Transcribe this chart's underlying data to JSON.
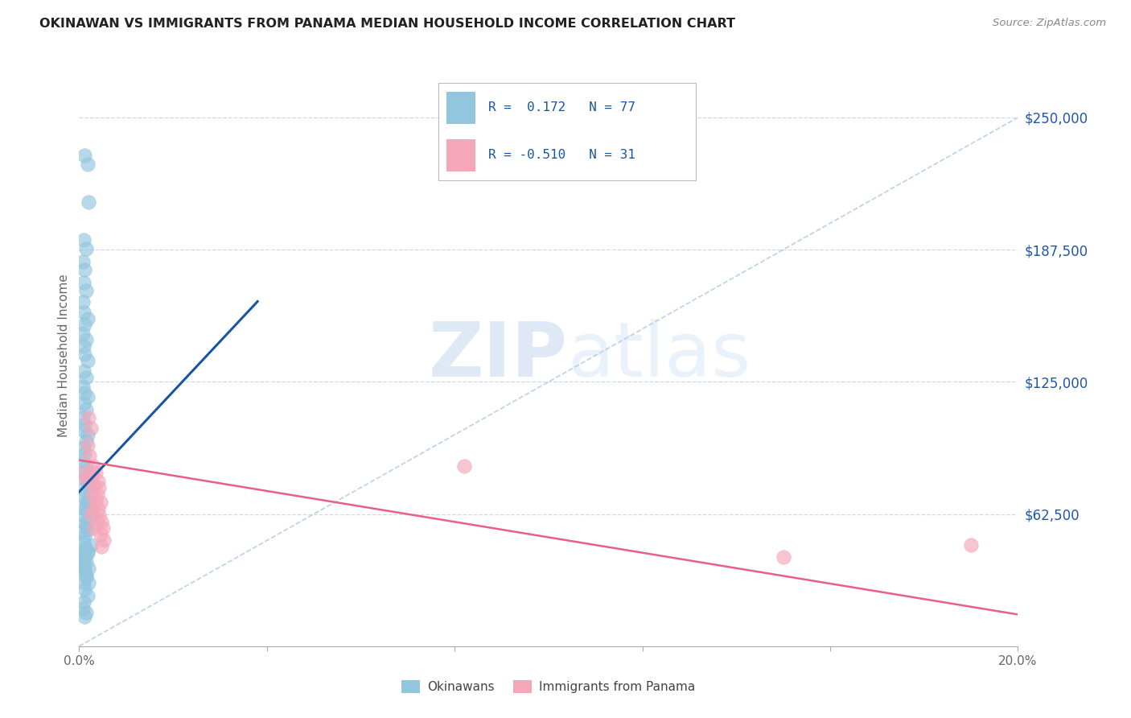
{
  "title": "OKINAWAN VS IMMIGRANTS FROM PANAMA MEDIAN HOUSEHOLD INCOME CORRELATION CHART",
  "source": "Source: ZipAtlas.com",
  "ylabel": "Median Household Income",
  "ytick_values": [
    62500,
    125000,
    187500,
    250000
  ],
  "ymin": 0,
  "ymax": 275000,
  "xmin": 0.0,
  "xmax": 0.2,
  "watermark_zip": "ZIP",
  "watermark_atlas": "atlas",
  "blue_color": "#92c5de",
  "pink_color": "#f4a7b9",
  "blue_line_color": "#1a56a0",
  "pink_line_color": "#e8608a",
  "dashed_color": "#b0c8e8",
  "grid_color": "#d0d8e0",
  "okinawan_points": [
    [
      0.0012,
      232000
    ],
    [
      0.0018,
      228000
    ],
    [
      0.002,
      210000
    ],
    [
      0.001,
      192000
    ],
    [
      0.0015,
      188000
    ],
    [
      0.0008,
      182000
    ],
    [
      0.0012,
      178000
    ],
    [
      0.001,
      172000
    ],
    [
      0.0015,
      168000
    ],
    [
      0.0008,
      163000
    ],
    [
      0.001,
      158000
    ],
    [
      0.0018,
      155000
    ],
    [
      0.0012,
      152000
    ],
    [
      0.0008,
      148000
    ],
    [
      0.0015,
      145000
    ],
    [
      0.001,
      142000
    ],
    [
      0.0012,
      138000
    ],
    [
      0.0018,
      135000
    ],
    [
      0.001,
      130000
    ],
    [
      0.0015,
      127000
    ],
    [
      0.0008,
      123000
    ],
    [
      0.0012,
      120000
    ],
    [
      0.0018,
      118000
    ],
    [
      0.001,
      115000
    ],
    [
      0.0015,
      112000
    ],
    [
      0.0008,
      108000
    ],
    [
      0.0012,
      105000
    ],
    [
      0.001,
      102000
    ],
    [
      0.0018,
      100000
    ],
    [
      0.0015,
      97000
    ],
    [
      0.001,
      94000
    ],
    [
      0.0012,
      91000
    ],
    [
      0.0008,
      88000
    ],
    [
      0.0015,
      85000
    ],
    [
      0.001,
      82000
    ],
    [
      0.0012,
      79000
    ],
    [
      0.0018,
      77000
    ],
    [
      0.001,
      74000
    ],
    [
      0.0008,
      71000
    ],
    [
      0.0015,
      68000
    ],
    [
      0.0012,
      65000
    ],
    [
      0.001,
      62000
    ],
    [
      0.0018,
      60000
    ],
    [
      0.0015,
      57000
    ],
    [
      0.0008,
      54000
    ],
    [
      0.0012,
      52000
    ],
    [
      0.001,
      49000
    ],
    [
      0.0015,
      46000
    ],
    [
      0.0018,
      44000
    ],
    [
      0.001,
      41000
    ],
    [
      0.0008,
      38000
    ],
    [
      0.0012,
      36000
    ],
    [
      0.0015,
      33000
    ],
    [
      0.001,
      30000
    ],
    [
      0.0012,
      27000
    ],
    [
      0.0018,
      24000
    ],
    [
      0.001,
      21000
    ],
    [
      0.0008,
      18000
    ],
    [
      0.0015,
      16000
    ],
    [
      0.0012,
      14000
    ],
    [
      0.001,
      46000
    ],
    [
      0.0008,
      43000
    ],
    [
      0.0015,
      40000
    ],
    [
      0.002,
      37000
    ],
    [
      0.0012,
      58000
    ],
    [
      0.0018,
      55000
    ],
    [
      0.0025,
      72000
    ],
    [
      0.002,
      68000
    ],
    [
      0.0015,
      65000
    ],
    [
      0.003,
      62000
    ],
    [
      0.0025,
      48000
    ],
    [
      0.0018,
      45000
    ],
    [
      0.0012,
      42000
    ],
    [
      0.0008,
      39000
    ],
    [
      0.001,
      36000
    ],
    [
      0.0015,
      33000
    ],
    [
      0.002,
      30000
    ]
  ],
  "panama_points": [
    [
      0.001,
      82000
    ],
    [
      0.0015,
      79000
    ],
    [
      0.002,
      108000
    ],
    [
      0.0025,
      103000
    ],
    [
      0.0018,
      95000
    ],
    [
      0.0022,
      90000
    ],
    [
      0.003,
      85000
    ],
    [
      0.0028,
      82000
    ],
    [
      0.0025,
      79000
    ],
    [
      0.0032,
      76000
    ],
    [
      0.0028,
      72000
    ],
    [
      0.0035,
      69000
    ],
    [
      0.003,
      65000
    ],
    [
      0.0025,
      62000
    ],
    [
      0.0038,
      59000
    ],
    [
      0.0032,
      56000
    ],
    [
      0.0035,
      82000
    ],
    [
      0.004,
      78000
    ],
    [
      0.0042,
      75000
    ],
    [
      0.0038,
      72000
    ],
    [
      0.0045,
      68000
    ],
    [
      0.004,
      65000
    ],
    [
      0.0042,
      62000
    ],
    [
      0.0048,
      59000
    ],
    [
      0.005,
      56000
    ],
    [
      0.0045,
      53000
    ],
    [
      0.0052,
      50000
    ],
    [
      0.0048,
      47000
    ],
    [
      0.082,
      85000
    ],
    [
      0.15,
      42000
    ],
    [
      0.19,
      48000
    ]
  ]
}
